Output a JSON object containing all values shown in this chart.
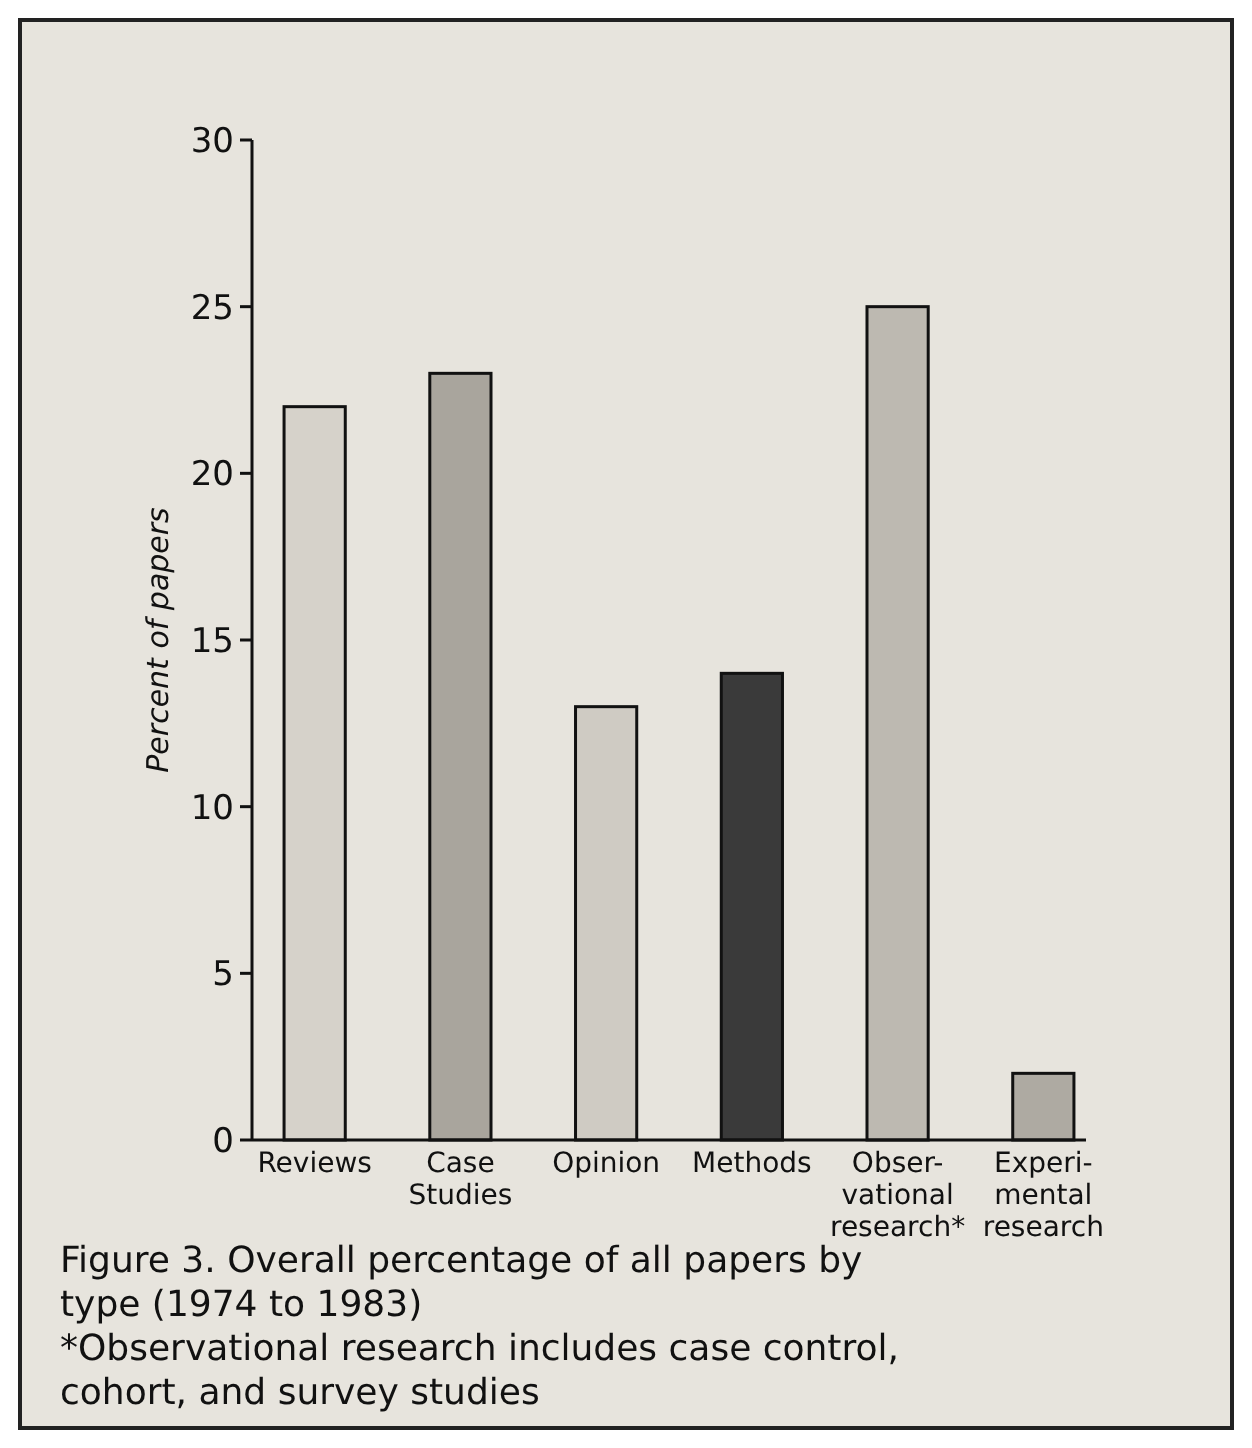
{
  "chart_data": {
    "type": "bar",
    "title": "Figure 3. Overall percentage of all papers by type (1974 to 1983)",
    "ylabel": "Percent of papers",
    "categories": [
      "Reviews",
      "Case\nStudies",
      "Opinion",
      "Methods",
      "Obser-\nvational\nresearch*",
      "Experi-\nmental\nresearch"
    ],
    "values": [
      22,
      23,
      13,
      14,
      25,
      2
    ],
    "colors": [
      "#d6d2ca",
      "#a9a59d",
      "#cfcbc3",
      "#3a3a3a",
      "#bdb9b1",
      "#aeaaa2"
    ],
    "ylim": [
      0,
      30
    ],
    "yticks": [
      0,
      5,
      10,
      15,
      20,
      25,
      30
    ],
    "grid": false,
    "annotations": [
      "*Observational research includes case control, cohort, and survey studies"
    ]
  }
}
